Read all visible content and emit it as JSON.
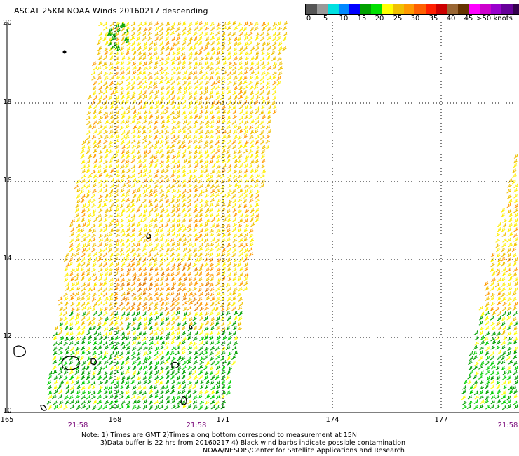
{
  "title": "ASCAT 25KM NOAA Winds 20160217 descending",
  "scale": {
    "colors": [
      "#555555",
      "#999999",
      "#00e0e0",
      "#0088ff",
      "#0000ff",
      "#00a000",
      "#00e000",
      "#ffff00",
      "#f0c000",
      "#ff9900",
      "#ff6000",
      "#ff2000",
      "#cc0000",
      "#996633",
      "#663300",
      "#ff00ff",
      "#cc00cc",
      "#9900cc",
      "#660099",
      "#33004d"
    ],
    "labels": [
      "0",
      "5",
      "10",
      "15",
      "20",
      "25",
      "30",
      "35",
      "40",
      "45",
      ">50 knots"
    ]
  },
  "y_labels": [
    "20",
    "18",
    "16",
    "14",
    "12",
    "10"
  ],
  "x_labels": [
    "165",
    "168",
    "171",
    "174",
    "177"
  ],
  "times": [
    "21:58",
    "21:58",
    "21:58"
  ],
  "notes": {
    "line1": "Note: 1) Times are GMT 2)Times along bottom correspond to measurement at 15N",
    "line2": "3)Data buffer is 22 hrs from 20160217 4) Black wind barbs indicate possible contamination",
    "line3": "NOAA/NESDIS/Center for Satellite Applications and Research"
  }
}
